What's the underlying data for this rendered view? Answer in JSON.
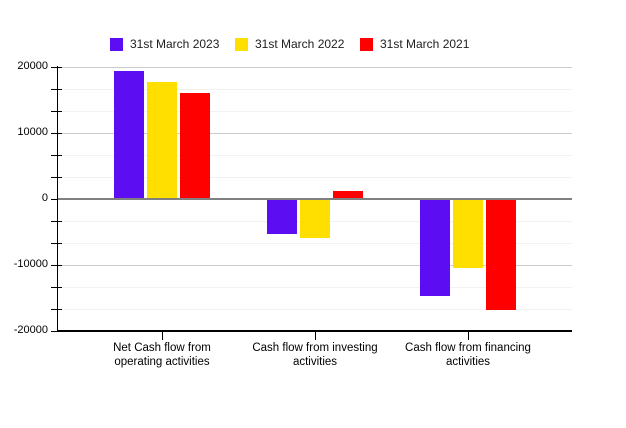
{
  "chart_data": {
    "type": "bar",
    "title": "",
    "categories": [
      "Net Cash flow from operating activities",
      "Cash flow from investing activities",
      "Cash flow from financing activities"
    ],
    "category_label_lines": [
      [
        "Net Cash flow from",
        "operating activities"
      ],
      [
        "Cash flow from investing",
        "activities"
      ],
      [
        "Cash flow from financing",
        "activities"
      ]
    ],
    "series": [
      {
        "name": "31st March 2023",
        "color": "#5c0df2",
        "values": [
          19400,
          -5300,
          -14700
        ]
      },
      {
        "name": "31st March 2022",
        "color": "#ffdf00",
        "values": [
          17800,
          -5900,
          -10400
        ]
      },
      {
        "name": "31st March 2021",
        "color": "#ff0000",
        "values": [
          16000,
          1200,
          -16800
        ]
      }
    ],
    "ylim": [
      -20000,
      20000
    ],
    "y_major_step": 10000,
    "y_minor_divisions_per_major": 3,
    "y_tick_labels": [
      "20000",
      "10000",
      "0",
      "-10000",
      "-20000"
    ],
    "legend_position": "top",
    "grid": true,
    "zero_baseline_color": "#808080",
    "axis_color": "#000000"
  }
}
